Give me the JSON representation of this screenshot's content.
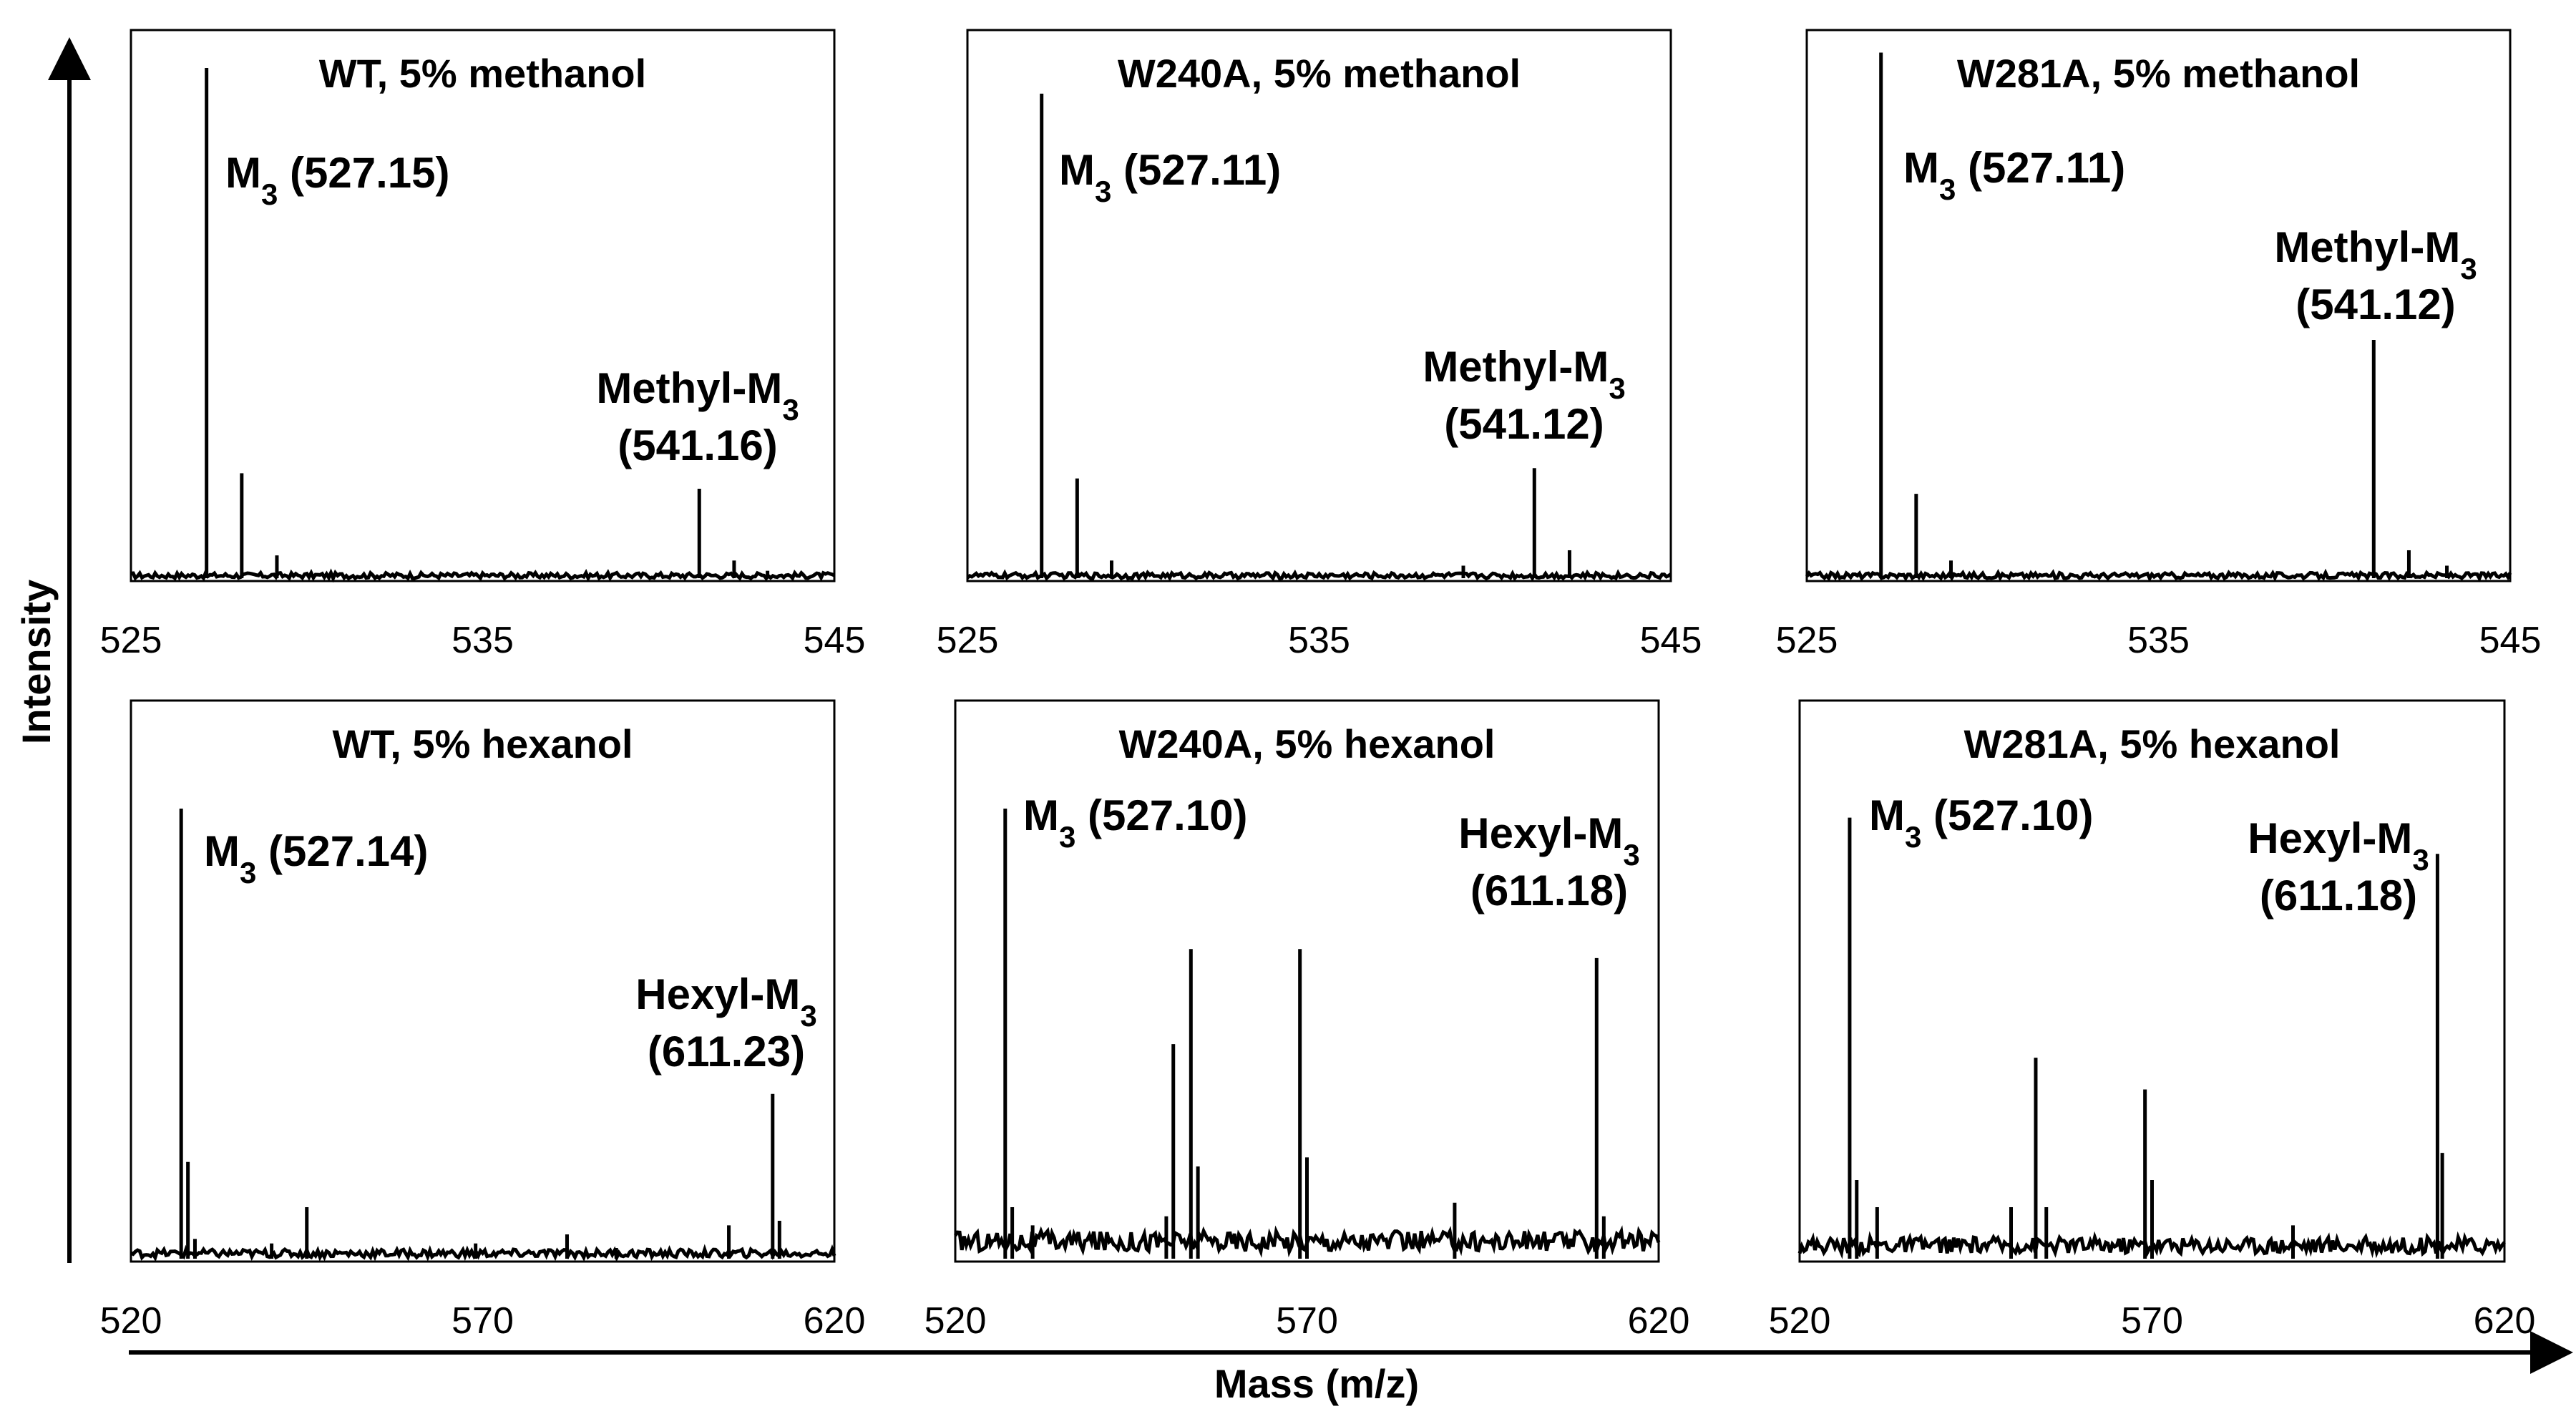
{
  "figure": {
    "x_axis_title": "Mass (m/z)",
    "y_axis_title": "Intensity"
  },
  "chart_data": [
    {
      "type": "line",
      "title": "WT, 5% methanol",
      "xlim": [
        525,
        545
      ],
      "xticks": [
        525,
        535,
        545
      ],
      "ylim": [
        0,
        1
      ],
      "baseline": 0.012,
      "peaks": [
        {
          "mz": 527.15,
          "intensity": 1.0
        },
        {
          "mz": 528.15,
          "intensity": 0.21
        },
        {
          "mz": 529.15,
          "intensity": 0.05
        },
        {
          "mz": 541.16,
          "intensity": 0.18
        },
        {
          "mz": 542.15,
          "intensity": 0.04
        },
        {
          "mz": 543.1,
          "intensity": 0.02
        }
      ],
      "annotations": [
        {
          "name": "M",
          "sub": "3",
          "value": "(527.15)",
          "mz": 527.15
        },
        {
          "name": "Methyl-M",
          "sub": "3",
          "value": "(541.16)",
          "mz": 541.16
        }
      ]
    },
    {
      "type": "line",
      "title": "W240A, 5% methanol",
      "xlim": [
        525,
        545
      ],
      "xticks": [
        525,
        535,
        545
      ],
      "ylim": [
        0,
        1
      ],
      "baseline": 0.012,
      "peaks": [
        {
          "mz": 527.11,
          "intensity": 0.95
        },
        {
          "mz": 528.12,
          "intensity": 0.2
        },
        {
          "mz": 529.1,
          "intensity": 0.04
        },
        {
          "mz": 539.1,
          "intensity": 0.03
        },
        {
          "mz": 541.12,
          "intensity": 0.22
        },
        {
          "mz": 542.12,
          "intensity": 0.06
        }
      ],
      "annotations": [
        {
          "name": "M",
          "sub": "3",
          "value": "(527.11)",
          "mz": 527.11
        },
        {
          "name": "Methyl-M",
          "sub": "3",
          "value": "(541.12)",
          "mz": 541.12
        }
      ]
    },
    {
      "type": "line",
      "title": "W281A, 5% methanol",
      "xlim": [
        525,
        545
      ],
      "xticks": [
        525,
        535,
        545
      ],
      "ylim": [
        0,
        1
      ],
      "baseline": 0.012,
      "peaks": [
        {
          "mz": 527.11,
          "intensity": 1.03
        },
        {
          "mz": 528.11,
          "intensity": 0.17
        },
        {
          "mz": 529.1,
          "intensity": 0.04
        },
        {
          "mz": 541.12,
          "intensity": 0.47
        },
        {
          "mz": 542.12,
          "intensity": 0.06
        },
        {
          "mz": 543.2,
          "intensity": 0.03
        }
      ],
      "annotations": [
        {
          "name": "M",
          "sub": "3",
          "value": "(527.11)",
          "mz": 527.11
        },
        {
          "name": "Methyl-M",
          "sub": "3",
          "value": "(541.12)",
          "mz": 541.12
        }
      ]
    },
    {
      "type": "line",
      "title": "WT, 5% hexanol",
      "xlim": [
        520,
        620
      ],
      "xticks": [
        520,
        570,
        620
      ],
      "ylim": [
        0,
        1
      ],
      "baseline": 0.02,
      "peaks": [
        {
          "mz": 527.14,
          "intensity": 1.0
        },
        {
          "mz": 528.1,
          "intensity": 0.22
        },
        {
          "mz": 529.1,
          "intensity": 0.05
        },
        {
          "mz": 540.0,
          "intensity": 0.04
        },
        {
          "mz": 545.0,
          "intensity": 0.12
        },
        {
          "mz": 569.0,
          "intensity": 0.04
        },
        {
          "mz": 582.0,
          "intensity": 0.06
        },
        {
          "mz": 589.0,
          "intensity": 0.03
        },
        {
          "mz": 605.0,
          "intensity": 0.08
        },
        {
          "mz": 611.23,
          "intensity": 0.37
        },
        {
          "mz": 612.2,
          "intensity": 0.09
        }
      ],
      "annotations": [
        {
          "name": "M",
          "sub": "3",
          "value": "(527.14)",
          "mz": 527.14
        },
        {
          "name": "Hexyl-M",
          "sub": "3",
          "value": "(611.23)",
          "mz": 611.23
        }
      ]
    },
    {
      "type": "line",
      "title": "W240A, 5% hexanol",
      "xlim": [
        520,
        620
      ],
      "xticks": [
        520,
        570,
        620
      ],
      "ylim": [
        0,
        1
      ],
      "baseline": 0.05,
      "peaks": [
        {
          "mz": 527.1,
          "intensity": 1.0
        },
        {
          "mz": 528.1,
          "intensity": 0.12
        },
        {
          "mz": 531.0,
          "intensity": 0.08
        },
        {
          "mz": 550.0,
          "intensity": 0.1
        },
        {
          "mz": 551.0,
          "intensity": 0.48
        },
        {
          "mz": 553.5,
          "intensity": 0.69
        },
        {
          "mz": 554.5,
          "intensity": 0.21
        },
        {
          "mz": 569.0,
          "intensity": 0.69
        },
        {
          "mz": 570.0,
          "intensity": 0.23
        },
        {
          "mz": 591.0,
          "intensity": 0.13
        },
        {
          "mz": 611.18,
          "intensity": 0.67
        },
        {
          "mz": 612.2,
          "intensity": 0.1
        }
      ],
      "annotations": [
        {
          "name": "M",
          "sub": "3",
          "value": "(527.10)",
          "mz": 527.1
        },
        {
          "name": "Hexyl-M",
          "sub": "3",
          "value": "(611.18)",
          "mz": 611.18
        }
      ]
    },
    {
      "type": "line",
      "title": "W281A, 5% hexanol",
      "xlim": [
        520,
        620
      ],
      "xticks": [
        520,
        570,
        620
      ],
      "ylim": [
        0,
        1
      ],
      "baseline": 0.04,
      "peaks": [
        {
          "mz": 527.1,
          "intensity": 0.98
        },
        {
          "mz": 528.1,
          "intensity": 0.18
        },
        {
          "mz": 531.0,
          "intensity": 0.12
        },
        {
          "mz": 550.0,
          "intensity": 0.12
        },
        {
          "mz": 553.5,
          "intensity": 0.45
        },
        {
          "mz": 555.0,
          "intensity": 0.12
        },
        {
          "mz": 569.0,
          "intensity": 0.38
        },
        {
          "mz": 570.0,
          "intensity": 0.18
        },
        {
          "mz": 590.0,
          "intensity": 0.08
        },
        {
          "mz": 610.5,
          "intensity": 0.9
        },
        {
          "mz": 611.18,
          "intensity": 0.24
        }
      ],
      "annotations": [
        {
          "name": "M",
          "sub": "3",
          "value": "(527.10)",
          "mz": 527.1
        },
        {
          "name": "Hexyl-M",
          "sub": "3",
          "value": "(611.18)",
          "mz": 611.18
        }
      ]
    }
  ]
}
